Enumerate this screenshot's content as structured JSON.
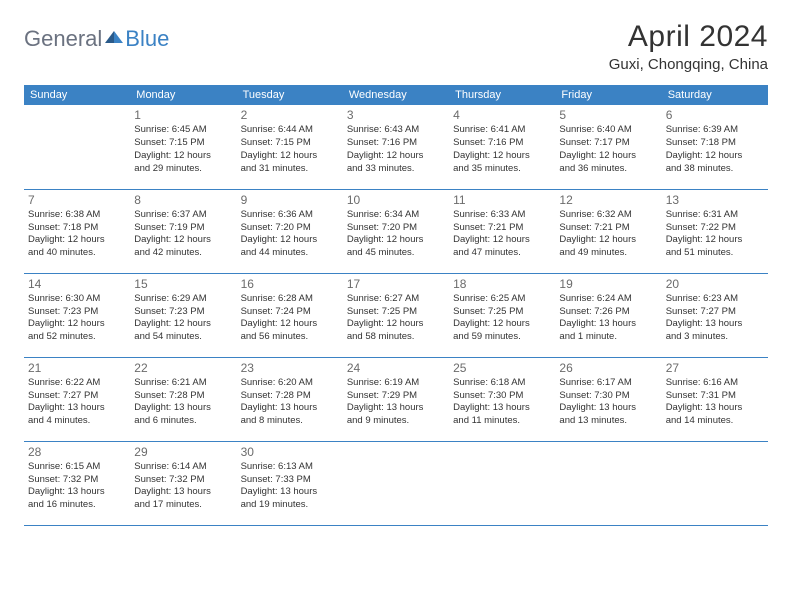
{
  "logo": {
    "general": "General",
    "blue": "Blue"
  },
  "title": "April 2024",
  "location": "Guxi, Chongqing, China",
  "colors": {
    "header_bg": "#3b82c4",
    "header_text": "#ffffff",
    "border": "#3b82c4",
    "text": "#333333",
    "logo_gray": "#6b7280",
    "logo_blue": "#3b82c4"
  },
  "day_headers": [
    "Sunday",
    "Monday",
    "Tuesday",
    "Wednesday",
    "Thursday",
    "Friday",
    "Saturday"
  ],
  "weeks": [
    [
      null,
      {
        "n": "1",
        "sr": "Sunrise: 6:45 AM",
        "ss": "Sunset: 7:15 PM",
        "d1": "Daylight: 12 hours",
        "d2": "and 29 minutes."
      },
      {
        "n": "2",
        "sr": "Sunrise: 6:44 AM",
        "ss": "Sunset: 7:15 PM",
        "d1": "Daylight: 12 hours",
        "d2": "and 31 minutes."
      },
      {
        "n": "3",
        "sr": "Sunrise: 6:43 AM",
        "ss": "Sunset: 7:16 PM",
        "d1": "Daylight: 12 hours",
        "d2": "and 33 minutes."
      },
      {
        "n": "4",
        "sr": "Sunrise: 6:41 AM",
        "ss": "Sunset: 7:16 PM",
        "d1": "Daylight: 12 hours",
        "d2": "and 35 minutes."
      },
      {
        "n": "5",
        "sr": "Sunrise: 6:40 AM",
        "ss": "Sunset: 7:17 PM",
        "d1": "Daylight: 12 hours",
        "d2": "and 36 minutes."
      },
      {
        "n": "6",
        "sr": "Sunrise: 6:39 AM",
        "ss": "Sunset: 7:18 PM",
        "d1": "Daylight: 12 hours",
        "d2": "and 38 minutes."
      }
    ],
    [
      {
        "n": "7",
        "sr": "Sunrise: 6:38 AM",
        "ss": "Sunset: 7:18 PM",
        "d1": "Daylight: 12 hours",
        "d2": "and 40 minutes."
      },
      {
        "n": "8",
        "sr": "Sunrise: 6:37 AM",
        "ss": "Sunset: 7:19 PM",
        "d1": "Daylight: 12 hours",
        "d2": "and 42 minutes."
      },
      {
        "n": "9",
        "sr": "Sunrise: 6:36 AM",
        "ss": "Sunset: 7:20 PM",
        "d1": "Daylight: 12 hours",
        "d2": "and 44 minutes."
      },
      {
        "n": "10",
        "sr": "Sunrise: 6:34 AM",
        "ss": "Sunset: 7:20 PM",
        "d1": "Daylight: 12 hours",
        "d2": "and 45 minutes."
      },
      {
        "n": "11",
        "sr": "Sunrise: 6:33 AM",
        "ss": "Sunset: 7:21 PM",
        "d1": "Daylight: 12 hours",
        "d2": "and 47 minutes."
      },
      {
        "n": "12",
        "sr": "Sunrise: 6:32 AM",
        "ss": "Sunset: 7:21 PM",
        "d1": "Daylight: 12 hours",
        "d2": "and 49 minutes."
      },
      {
        "n": "13",
        "sr": "Sunrise: 6:31 AM",
        "ss": "Sunset: 7:22 PM",
        "d1": "Daylight: 12 hours",
        "d2": "and 51 minutes."
      }
    ],
    [
      {
        "n": "14",
        "sr": "Sunrise: 6:30 AM",
        "ss": "Sunset: 7:23 PM",
        "d1": "Daylight: 12 hours",
        "d2": "and 52 minutes."
      },
      {
        "n": "15",
        "sr": "Sunrise: 6:29 AM",
        "ss": "Sunset: 7:23 PM",
        "d1": "Daylight: 12 hours",
        "d2": "and 54 minutes."
      },
      {
        "n": "16",
        "sr": "Sunrise: 6:28 AM",
        "ss": "Sunset: 7:24 PM",
        "d1": "Daylight: 12 hours",
        "d2": "and 56 minutes."
      },
      {
        "n": "17",
        "sr": "Sunrise: 6:27 AM",
        "ss": "Sunset: 7:25 PM",
        "d1": "Daylight: 12 hours",
        "d2": "and 58 minutes."
      },
      {
        "n": "18",
        "sr": "Sunrise: 6:25 AM",
        "ss": "Sunset: 7:25 PM",
        "d1": "Daylight: 12 hours",
        "d2": "and 59 minutes."
      },
      {
        "n": "19",
        "sr": "Sunrise: 6:24 AM",
        "ss": "Sunset: 7:26 PM",
        "d1": "Daylight: 13 hours",
        "d2": "and 1 minute."
      },
      {
        "n": "20",
        "sr": "Sunrise: 6:23 AM",
        "ss": "Sunset: 7:27 PM",
        "d1": "Daylight: 13 hours",
        "d2": "and 3 minutes."
      }
    ],
    [
      {
        "n": "21",
        "sr": "Sunrise: 6:22 AM",
        "ss": "Sunset: 7:27 PM",
        "d1": "Daylight: 13 hours",
        "d2": "and 4 minutes."
      },
      {
        "n": "22",
        "sr": "Sunrise: 6:21 AM",
        "ss": "Sunset: 7:28 PM",
        "d1": "Daylight: 13 hours",
        "d2": "and 6 minutes."
      },
      {
        "n": "23",
        "sr": "Sunrise: 6:20 AM",
        "ss": "Sunset: 7:28 PM",
        "d1": "Daylight: 13 hours",
        "d2": "and 8 minutes."
      },
      {
        "n": "24",
        "sr": "Sunrise: 6:19 AM",
        "ss": "Sunset: 7:29 PM",
        "d1": "Daylight: 13 hours",
        "d2": "and 9 minutes."
      },
      {
        "n": "25",
        "sr": "Sunrise: 6:18 AM",
        "ss": "Sunset: 7:30 PM",
        "d1": "Daylight: 13 hours",
        "d2": "and 11 minutes."
      },
      {
        "n": "26",
        "sr": "Sunrise: 6:17 AM",
        "ss": "Sunset: 7:30 PM",
        "d1": "Daylight: 13 hours",
        "d2": "and 13 minutes."
      },
      {
        "n": "27",
        "sr": "Sunrise: 6:16 AM",
        "ss": "Sunset: 7:31 PM",
        "d1": "Daylight: 13 hours",
        "d2": "and 14 minutes."
      }
    ],
    [
      {
        "n": "28",
        "sr": "Sunrise: 6:15 AM",
        "ss": "Sunset: 7:32 PM",
        "d1": "Daylight: 13 hours",
        "d2": "and 16 minutes."
      },
      {
        "n": "29",
        "sr": "Sunrise: 6:14 AM",
        "ss": "Sunset: 7:32 PM",
        "d1": "Daylight: 13 hours",
        "d2": "and 17 minutes."
      },
      {
        "n": "30",
        "sr": "Sunrise: 6:13 AM",
        "ss": "Sunset: 7:33 PM",
        "d1": "Daylight: 13 hours",
        "d2": "and 19 minutes."
      },
      null,
      null,
      null,
      null
    ]
  ]
}
